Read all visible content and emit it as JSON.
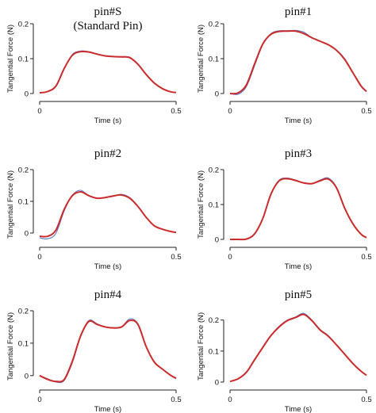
{
  "chart_data": [
    {
      "type": "line",
      "title": "pin#S",
      "subtitle": "(Standard Pin)",
      "xlabel": "Time (s)",
      "ylabel": "Tangential Force (N)",
      "xlim": [
        0,
        0.5
      ],
      "ylim": [
        0,
        0.2
      ],
      "xticks": [
        "0",
        "0.5"
      ],
      "yticks": [
        "0",
        "0.1",
        "0.2"
      ],
      "series": [
        {
          "color": "#4c6fc4",
          "x": [
            0,
            0.03,
            0.06,
            0.09,
            0.12,
            0.15,
            0.18,
            0.21,
            0.24,
            0.27,
            0.3,
            0.33,
            0.36,
            0.39,
            0.42,
            0.45,
            0.48,
            0.5
          ],
          "y": [
            0.002,
            0.006,
            0.02,
            0.07,
            0.112,
            0.122,
            0.12,
            0.114,
            0.108,
            0.106,
            0.106,
            0.104,
            0.085,
            0.055,
            0.03,
            0.015,
            0.005,
            0.003
          ]
        },
        {
          "color": "#cc2b2b",
          "x": [
            0,
            0.03,
            0.06,
            0.09,
            0.12,
            0.15,
            0.18,
            0.21,
            0.24,
            0.27,
            0.3,
            0.33,
            0.36,
            0.39,
            0.42,
            0.45,
            0.48,
            0.5
          ],
          "y": [
            0.002,
            0.006,
            0.022,
            0.072,
            0.11,
            0.12,
            0.119,
            0.113,
            0.108,
            0.106,
            0.105,
            0.103,
            0.084,
            0.055,
            0.03,
            0.014,
            0.005,
            0.003
          ]
        }
      ]
    },
    {
      "type": "line",
      "title": "pin#1",
      "subtitle": "",
      "xlabel": "Time (s)",
      "ylabel": "Tangential Force (N)",
      "xlim": [
        0,
        0.5
      ],
      "ylim": [
        0,
        0.2
      ],
      "xticks": [
        "0",
        "0.5"
      ],
      "yticks": [
        "0",
        "0.1",
        "0.2"
      ],
      "series": [
        {
          "color": "#4c6fc4",
          "x": [
            0,
            0.03,
            0.06,
            0.09,
            0.12,
            0.15,
            0.18,
            0.21,
            0.24,
            0.27,
            0.3,
            0.33,
            0.36,
            0.39,
            0.42,
            0.45,
            0.48,
            0.5
          ],
          "y": [
            0,
            -0.002,
            0.02,
            0.08,
            0.14,
            0.172,
            0.18,
            0.18,
            0.181,
            0.176,
            0.16,
            0.15,
            0.14,
            0.125,
            0.1,
            0.06,
            0.02,
            0.005
          ]
        },
        {
          "color": "#cc2b2b",
          "x": [
            0,
            0.03,
            0.06,
            0.09,
            0.12,
            0.15,
            0.18,
            0.21,
            0.24,
            0.27,
            0.3,
            0.33,
            0.36,
            0.39,
            0.42,
            0.45,
            0.48,
            0.5
          ],
          "y": [
            0,
            0.002,
            0.025,
            0.085,
            0.142,
            0.17,
            0.178,
            0.179,
            0.179,
            0.172,
            0.16,
            0.15,
            0.14,
            0.124,
            0.098,
            0.06,
            0.022,
            0.006
          ]
        }
      ]
    },
    {
      "type": "line",
      "title": "pin#2",
      "subtitle": "",
      "xlabel": "Time (s)",
      "ylabel": "Tangential Force (N)",
      "xlim": [
        0,
        0.5
      ],
      "ylim": [
        -0.02,
        0.2
      ],
      "xticks": [
        "0",
        "0.5"
      ],
      "yticks": [
        "0",
        "0.1",
        "0.2"
      ],
      "series": [
        {
          "color": "#4c6fc4",
          "x": [
            0,
            0.03,
            0.06,
            0.09,
            0.12,
            0.15,
            0.18,
            0.21,
            0.24,
            0.27,
            0.3,
            0.33,
            0.36,
            0.39,
            0.42,
            0.45,
            0.48,
            0.5
          ],
          "y": [
            -0.015,
            -0.018,
            0.0,
            0.07,
            0.12,
            0.135,
            0.118,
            0.11,
            0.112,
            0.118,
            0.122,
            0.112,
            0.085,
            0.05,
            0.022,
            0.012,
            0.005,
            0.002
          ]
        },
        {
          "color": "#cc2b2b",
          "x": [
            0,
            0.03,
            0.06,
            0.09,
            0.12,
            0.15,
            0.18,
            0.21,
            0.24,
            0.27,
            0.3,
            0.33,
            0.36,
            0.39,
            0.42,
            0.45,
            0.48,
            0.5
          ],
          "y": [
            -0.01,
            -0.01,
            0.01,
            0.075,
            0.118,
            0.13,
            0.118,
            0.11,
            0.112,
            0.117,
            0.12,
            0.11,
            0.084,
            0.05,
            0.023,
            0.012,
            0.005,
            0.002
          ]
        }
      ]
    },
    {
      "type": "line",
      "title": "pin#3",
      "subtitle": "",
      "xlabel": "Time (s)",
      "ylabel": "Tangential Force (N)",
      "xlim": [
        0,
        0.5
      ],
      "ylim": [
        0,
        0.2
      ],
      "xticks": [
        "0",
        "0.5"
      ],
      "yticks": [
        "0",
        "0.1",
        "0.2"
      ],
      "series": [
        {
          "color": "#4c6fc4",
          "x": [
            0,
            0.03,
            0.06,
            0.09,
            0.12,
            0.15,
            0.18,
            0.21,
            0.24,
            0.27,
            0.3,
            0.33,
            0.36,
            0.39,
            0.42,
            0.45,
            0.48,
            0.5
          ],
          "y": [
            0,
            0,
            0.0,
            0.015,
            0.06,
            0.13,
            0.17,
            0.176,
            0.17,
            0.162,
            0.16,
            0.17,
            0.176,
            0.15,
            0.09,
            0.045,
            0.015,
            0.005
          ]
        },
        {
          "color": "#cc2b2b",
          "x": [
            0,
            0.03,
            0.06,
            0.09,
            0.12,
            0.15,
            0.18,
            0.21,
            0.24,
            0.27,
            0.3,
            0.33,
            0.36,
            0.39,
            0.42,
            0.45,
            0.48,
            0.5
          ],
          "y": [
            0,
            0,
            0.001,
            0.016,
            0.06,
            0.13,
            0.168,
            0.174,
            0.169,
            0.162,
            0.16,
            0.168,
            0.173,
            0.148,
            0.09,
            0.045,
            0.015,
            0.005
          ]
        }
      ]
    },
    {
      "type": "line",
      "title": "pin#4",
      "subtitle": "",
      "xlabel": "Time (s)",
      "ylabel": "Tangential Force (N)",
      "xlim": [
        0,
        0.5
      ],
      "ylim": [
        -0.02,
        0.2
      ],
      "xticks": [
        "0",
        "0.5"
      ],
      "yticks": [
        "0",
        "0.1",
        "0.2"
      ],
      "series": [
        {
          "color": "#4c6fc4",
          "x": [
            0,
            0.03,
            0.06,
            0.09,
            0.12,
            0.15,
            0.18,
            0.21,
            0.24,
            0.27,
            0.3,
            0.33,
            0.36,
            0.39,
            0.42,
            0.45,
            0.48,
            0.5
          ],
          "y": [
            0,
            -0.01,
            -0.02,
            -0.015,
            0.04,
            0.12,
            0.17,
            0.16,
            0.15,
            0.148,
            0.15,
            0.175,
            0.16,
            0.09,
            0.04,
            0.02,
            0.0,
            -0.01
          ]
        },
        {
          "color": "#cc2b2b",
          "x": [
            0,
            0.03,
            0.06,
            0.09,
            0.12,
            0.15,
            0.18,
            0.21,
            0.24,
            0.27,
            0.3,
            0.33,
            0.36,
            0.39,
            0.42,
            0.45,
            0.48,
            0.5
          ],
          "y": [
            0,
            -0.012,
            -0.018,
            -0.012,
            0.045,
            0.122,
            0.167,
            0.158,
            0.15,
            0.147,
            0.15,
            0.17,
            0.158,
            0.09,
            0.042,
            0.02,
            0.001,
            -0.008
          ]
        }
      ]
    },
    {
      "type": "line",
      "title": "pin#5",
      "subtitle": "",
      "xlabel": "Time (s)",
      "ylabel": "Tangential Force (N)",
      "xlim": [
        0,
        0.5
      ],
      "ylim": [
        0,
        0.23
      ],
      "xticks": [
        "0",
        "0.5"
      ],
      "yticks": [
        "0",
        "0.1",
        "0.2"
      ],
      "series": [
        {
          "color": "#4c6fc4",
          "x": [
            0,
            0.03,
            0.06,
            0.09,
            0.12,
            0.15,
            0.18,
            0.21,
            0.24,
            0.27,
            0.3,
            0.33,
            0.36,
            0.39,
            0.42,
            0.45,
            0.48,
            0.5
          ],
          "y": [
            0.002,
            0.01,
            0.03,
            0.07,
            0.11,
            0.15,
            0.18,
            0.2,
            0.21,
            0.222,
            0.2,
            0.17,
            0.15,
            0.12,
            0.09,
            0.06,
            0.035,
            0.022
          ]
        },
        {
          "color": "#cc2b2b",
          "x": [
            0,
            0.03,
            0.06,
            0.09,
            0.12,
            0.15,
            0.18,
            0.21,
            0.24,
            0.27,
            0.3,
            0.33,
            0.36,
            0.39,
            0.42,
            0.45,
            0.48,
            0.5
          ],
          "y": [
            0.002,
            0.011,
            0.032,
            0.072,
            0.112,
            0.15,
            0.178,
            0.198,
            0.208,
            0.218,
            0.198,
            0.168,
            0.148,
            0.12,
            0.09,
            0.06,
            0.035,
            0.022
          ]
        }
      ]
    }
  ]
}
